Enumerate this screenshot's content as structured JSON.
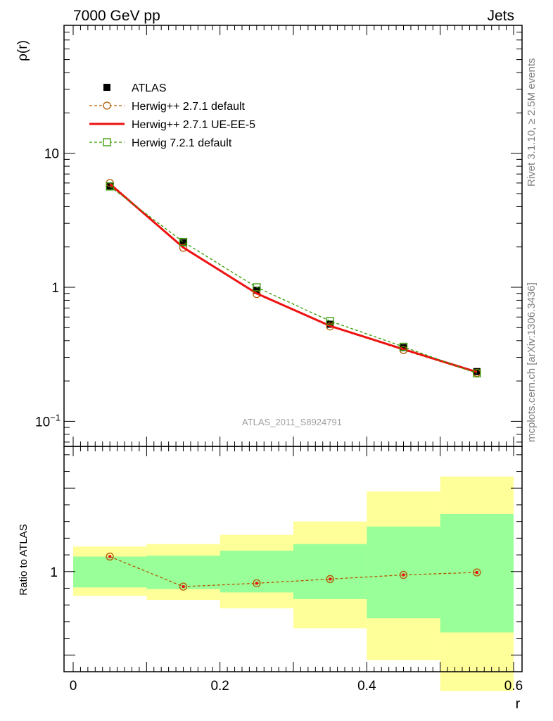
{
  "header": {
    "left": "7000 GeV pp",
    "right": "Jets"
  },
  "side_text": {
    "rivet": "Rivet 3.1.10, ≥ 2.5M events",
    "mcplots": "mcplots.cern.ch [arXiv:1306.3436]"
  },
  "watermark": "ATLAS_2011_S8924791",
  "chart_data": [
    {
      "type": "scatter",
      "panel": "main",
      "ylabel": "ρ(r)",
      "yscale": "log",
      "xlim": [
        0,
        0.6
      ],
      "ylim": [
        0.065,
        90
      ],
      "ytick_labels": [
        {
          "value": 0.1,
          "base": "10",
          "exp": "−1"
        },
        {
          "value": 1,
          "base": "1",
          "exp": ""
        },
        {
          "value": 10,
          "base": "10",
          "exp": ""
        }
      ],
      "legend_position": "top-left",
      "x": [
        0.05,
        0.15,
        0.25,
        0.35,
        0.45,
        0.55
      ],
      "series": [
        {
          "name": "ATLAS",
          "style": "data",
          "color": "#000000",
          "values": [
            5.7,
            2.15,
            0.95,
            0.53,
            0.355,
            0.235
          ]
        },
        {
          "name": "Herwig++ 2.7.1 default",
          "style": "dashed-circle",
          "color": "#b35900",
          "values": [
            6.0,
            1.97,
            0.89,
            0.51,
            0.34,
            0.23
          ]
        },
        {
          "name": "Herwig++ 2.7.1 UE-EE-5",
          "style": "solid",
          "color": "#ee1111",
          "values": [
            5.9,
            1.98,
            0.9,
            0.515,
            0.345,
            0.233
          ]
        },
        {
          "name": "Herwig 7.2.1 default",
          "style": "dashed-square",
          "color": "#339900",
          "values": [
            5.65,
            2.18,
            1.0,
            0.56,
            0.36,
            0.228
          ]
        }
      ]
    },
    {
      "type": "scatter",
      "panel": "ratio",
      "xlabel": "r",
      "ylabel": "Ratio to ATLAS",
      "xlim": [
        0,
        0.6
      ],
      "ylim": [
        0.4,
        1.75
      ],
      "xtick_labels": [
        {
          "value": 0,
          "label": "0"
        },
        {
          "value": 0.2,
          "label": "0.2"
        },
        {
          "value": 0.4,
          "label": "0.4"
        },
        {
          "value": 0.6,
          "label": "0.6"
        }
      ],
      "ytick_labels": [
        {
          "value": 1,
          "label": "1"
        }
      ],
      "bands": [
        {
          "x0": 0.0,
          "x1": 0.1,
          "stat_lo": 0.905,
          "stat_hi": 1.09,
          "tot_lo": 0.855,
          "tot_hi": 1.15
        },
        {
          "x0": 0.1,
          "x1": 0.2,
          "stat_lo": 0.895,
          "stat_hi": 1.095,
          "tot_lo": 0.83,
          "tot_hi": 1.165
        },
        {
          "x0": 0.2,
          "x1": 0.3,
          "stat_lo": 0.875,
          "stat_hi": 1.125,
          "tot_lo": 0.78,
          "tot_hi": 1.22
        },
        {
          "x0": 0.3,
          "x1": 0.4,
          "stat_lo": 0.835,
          "stat_hi": 1.165,
          "tot_lo": 0.66,
          "tot_hi": 1.3
        },
        {
          "x0": 0.4,
          "x1": 0.5,
          "stat_lo": 0.72,
          "stat_hi": 1.27,
          "tot_lo": 0.47,
          "tot_hi": 1.48
        },
        {
          "x0": 0.5,
          "x1": 0.6,
          "stat_lo": 0.635,
          "stat_hi": 1.345,
          "tot_lo": 0.285,
          "tot_hi": 1.57
        }
      ],
      "band_colors": {
        "stat": "#99ff99",
        "total": "#ffff99"
      },
      "x": [
        0.05,
        0.15,
        0.25,
        0.35,
        0.45,
        0.55
      ],
      "series": [
        {
          "name": "Herwig++ 2.7.1 default",
          "style": "dashed-circle",
          "color": "#b35900",
          "values": [
            1.09,
            0.91,
            0.93,
            0.955,
            0.98,
            0.995
          ]
        }
      ]
    }
  ]
}
